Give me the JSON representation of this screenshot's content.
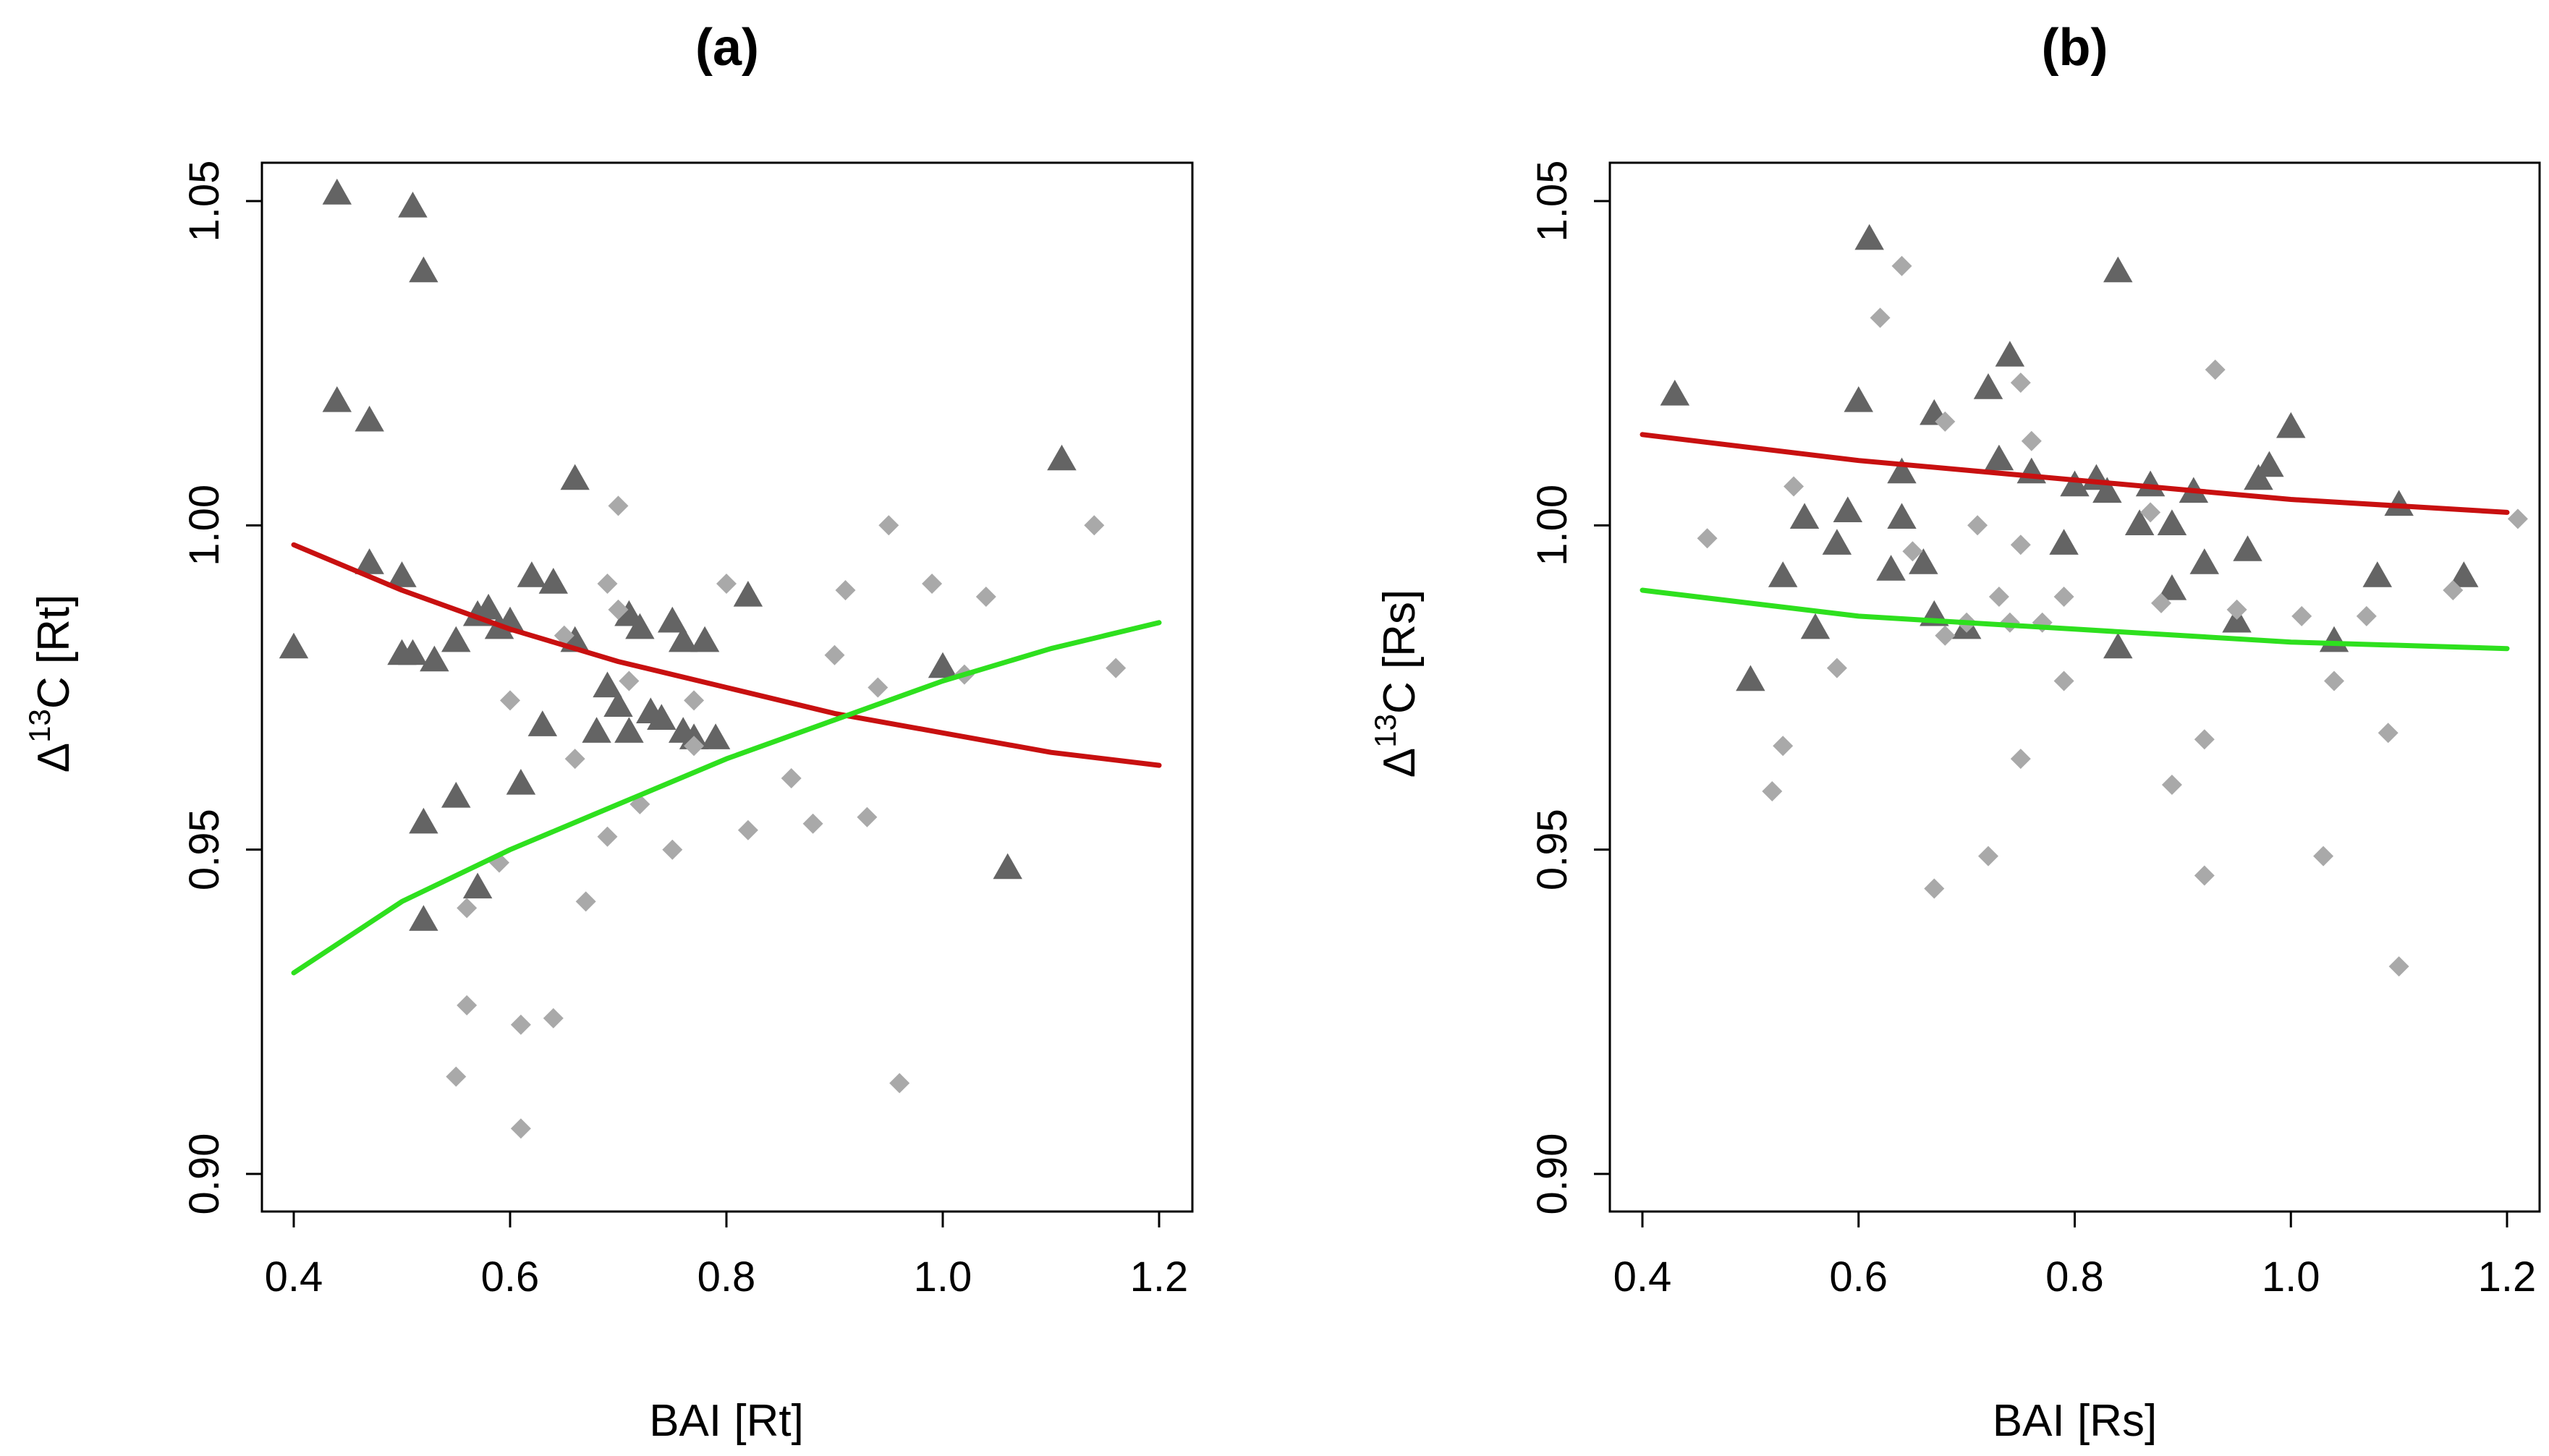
{
  "chart_data": [
    {
      "type": "scatter",
      "title": "(a)",
      "xlabel": "BAI [Rt]",
      "ylabel": {
        "prefix": "Δ",
        "sup": "13",
        "main": "C [Rt]"
      },
      "xlim": [
        0.4,
        1.2
      ],
      "ylim": [
        0.9,
        1.05
      ],
      "x_ticks": [
        "0.4",
        "0.6",
        "0.8",
        "1.0",
        "1.2"
      ],
      "x_tick_values": [
        0.4,
        0.6,
        0.8,
        1.0,
        1.2
      ],
      "y_ticks": [
        "0.90",
        "0.95",
        "1.00",
        "1.05"
      ],
      "y_tick_values": [
        0.9,
        0.95,
        1.0,
        1.05
      ],
      "colors": {
        "triangle": "#646464",
        "diamond": "#a9a9a9",
        "red_line": "#c81010",
        "green_line": "#2ee01e"
      },
      "series": [
        {
          "name": "triangles",
          "marker": "triangle",
          "points": [
            [
              0.4,
              0.981
            ],
            [
              0.44,
              1.051
            ],
            [
              0.44,
              1.019
            ],
            [
              0.47,
              1.016
            ],
            [
              0.47,
              0.994
            ],
            [
              0.5,
              0.992
            ],
            [
              0.5,
              0.98
            ],
            [
              0.51,
              0.98
            ],
            [
              0.51,
              1.049
            ],
            [
              0.52,
              1.039
            ],
            [
              0.52,
              0.954
            ],
            [
              0.52,
              0.939
            ],
            [
              0.53,
              0.979
            ],
            [
              0.55,
              0.958
            ],
            [
              0.55,
              0.982
            ],
            [
              0.57,
              0.944
            ],
            [
              0.57,
              0.986
            ],
            [
              0.58,
              0.987
            ],
            [
              0.59,
              0.984
            ],
            [
              0.6,
              0.985
            ],
            [
              0.61,
              0.96
            ],
            [
              0.62,
              0.992
            ],
            [
              0.63,
              0.969
            ],
            [
              0.64,
              0.991
            ],
            [
              0.66,
              1.007
            ],
            [
              0.66,
              0.982
            ],
            [
              0.68,
              0.968
            ],
            [
              0.69,
              0.975
            ],
            [
              0.7,
              0.972
            ],
            [
              0.71,
              0.968
            ],
            [
              0.71,
              0.986
            ],
            [
              0.72,
              0.984
            ],
            [
              0.73,
              0.971
            ],
            [
              0.74,
              0.97
            ],
            [
              0.75,
              0.985
            ],
            [
              0.76,
              0.968
            ],
            [
              0.76,
              0.982
            ],
            [
              0.77,
              0.967
            ],
            [
              0.78,
              0.982
            ],
            [
              0.79,
              0.967
            ],
            [
              0.82,
              0.989
            ],
            [
              1.0,
              0.978
            ],
            [
              1.06,
              0.947
            ],
            [
              1.11,
              1.01
            ]
          ]
        },
        {
          "name": "diamonds",
          "marker": "diamond",
          "points": [
            [
              0.55,
              0.915
            ],
            [
              0.56,
              0.926
            ],
            [
              0.56,
              0.941
            ],
            [
              0.59,
              0.948
            ],
            [
              0.6,
              0.973
            ],
            [
              0.61,
              0.907
            ],
            [
              0.61,
              0.923
            ],
            [
              0.64,
              0.924
            ],
            [
              0.65,
              0.983
            ],
            [
              0.66,
              0.964
            ],
            [
              0.67,
              0.942
            ],
            [
              0.69,
              0.991
            ],
            [
              0.69,
              0.952
            ],
            [
              0.7,
              0.987
            ],
            [
              0.7,
              1.003
            ],
            [
              0.71,
              0.976
            ],
            [
              0.72,
              0.957
            ],
            [
              0.75,
              0.95
            ],
            [
              0.77,
              0.973
            ],
            [
              0.77,
              0.966
            ],
            [
              0.8,
              0.991
            ],
            [
              0.82,
              0.953
            ],
            [
              0.86,
              0.961
            ],
            [
              0.88,
              0.954
            ],
            [
              0.9,
              0.98
            ],
            [
              0.91,
              0.99
            ],
            [
              0.93,
              0.955
            ],
            [
              0.94,
              0.975
            ],
            [
              0.95,
              1.0
            ],
            [
              0.96,
              0.914
            ],
            [
              0.99,
              0.991
            ],
            [
              1.02,
              0.977
            ],
            [
              1.04,
              0.989
            ],
            [
              1.14,
              1.0
            ],
            [
              1.16,
              0.978
            ]
          ]
        },
        {
          "name": "red_curve",
          "marker": "line",
          "color_key": "red_line",
          "points": [
            [
              0.4,
              0.997
            ],
            [
              0.5,
              0.99
            ],
            [
              0.6,
              0.984
            ],
            [
              0.7,
              0.979
            ],
            [
              0.8,
              0.975
            ],
            [
              0.9,
              0.971
            ],
            [
              1.0,
              0.968
            ],
            [
              1.1,
              0.965
            ],
            [
              1.2,
              0.963
            ]
          ]
        },
        {
          "name": "green_curve",
          "marker": "line",
          "color_key": "green_line",
          "points": [
            [
              0.4,
              0.931
            ],
            [
              0.5,
              0.942
            ],
            [
              0.6,
              0.95
            ],
            [
              0.7,
              0.957
            ],
            [
              0.8,
              0.964
            ],
            [
              0.9,
              0.97
            ],
            [
              1.0,
              0.976
            ],
            [
              1.1,
              0.981
            ],
            [
              1.2,
              0.985
            ]
          ]
        }
      ]
    },
    {
      "type": "scatter",
      "title": "(b)",
      "xlabel": "BAI [Rs]",
      "ylabel": {
        "prefix": "Δ",
        "sup": "13",
        "main": "C [Rs]"
      },
      "xlim": [
        0.4,
        1.2
      ],
      "ylim": [
        0.9,
        1.05
      ],
      "x_ticks": [
        "0.4",
        "0.6",
        "0.8",
        "1.0",
        "1.2"
      ],
      "x_tick_values": [
        0.4,
        0.6,
        0.8,
        1.0,
        1.2
      ],
      "y_ticks": [
        "0.90",
        "0.95",
        "1.00",
        "1.05"
      ],
      "y_tick_values": [
        0.9,
        0.95,
        1.0,
        1.05
      ],
      "colors": {
        "triangle": "#646464",
        "diamond": "#a9a9a9",
        "red_line": "#c81010",
        "green_line": "#2ee01e"
      },
      "series": [
        {
          "name": "triangles",
          "marker": "triangle",
          "points": [
            [
              0.43,
              1.02
            ],
            [
              0.5,
              0.976
            ],
            [
              0.53,
              0.992
            ],
            [
              0.55,
              1.001
            ],
            [
              0.56,
              0.984
            ],
            [
              0.58,
              0.997
            ],
            [
              0.59,
              1.002
            ],
            [
              0.6,
              1.019
            ],
            [
              0.61,
              1.044
            ],
            [
              0.63,
              0.993
            ],
            [
              0.64,
              1.001
            ],
            [
              0.64,
              1.008
            ],
            [
              0.66,
              0.994
            ],
            [
              0.67,
              1.017
            ],
            [
              0.67,
              0.986
            ],
            [
              0.7,
              0.984
            ],
            [
              0.72,
              1.021
            ],
            [
              0.73,
              1.01
            ],
            [
              0.74,
              1.026
            ],
            [
              0.76,
              1.008
            ],
            [
              0.79,
              0.997
            ],
            [
              0.8,
              1.006
            ],
            [
              0.82,
              1.007
            ],
            [
              0.83,
              1.005
            ],
            [
              0.84,
              1.039
            ],
            [
              0.84,
              0.981
            ],
            [
              0.86,
              1.0
            ],
            [
              0.87,
              1.006
            ],
            [
              0.89,
              1.0
            ],
            [
              0.89,
              0.99
            ],
            [
              0.91,
              1.005
            ],
            [
              0.92,
              0.994
            ],
            [
              0.95,
              0.985
            ],
            [
              0.96,
              0.996
            ],
            [
              0.97,
              1.007
            ],
            [
              0.98,
              1.009
            ],
            [
              1.0,
              1.015
            ],
            [
              1.04,
              0.982
            ],
            [
              1.08,
              0.992
            ],
            [
              1.1,
              1.003
            ],
            [
              1.16,
              0.992
            ]
          ]
        },
        {
          "name": "diamonds",
          "marker": "diamond",
          "points": [
            [
              0.46,
              0.998
            ],
            [
              0.52,
              0.959
            ],
            [
              0.53,
              0.966
            ],
            [
              0.54,
              1.006
            ],
            [
              0.58,
              0.978
            ],
            [
              0.62,
              1.032
            ],
            [
              0.64,
              1.04
            ],
            [
              0.65,
              0.996
            ],
            [
              0.67,
              0.944
            ],
            [
              0.68,
              0.983
            ],
            [
              0.68,
              1.016
            ],
            [
              0.7,
              0.985
            ],
            [
              0.71,
              1.0
            ],
            [
              0.72,
              0.949
            ],
            [
              0.73,
              0.989
            ],
            [
              0.74,
              0.985
            ],
            [
              0.75,
              1.022
            ],
            [
              0.75,
              0.997
            ],
            [
              0.75,
              0.964
            ],
            [
              0.76,
              1.013
            ],
            [
              0.77,
              0.985
            ],
            [
              0.79,
              0.989
            ],
            [
              0.79,
              0.976
            ],
            [
              0.87,
              1.002
            ],
            [
              0.88,
              0.988
            ],
            [
              0.89,
              0.96
            ],
            [
              0.92,
              0.967
            ],
            [
              0.92,
              0.946
            ],
            [
              0.93,
              1.024
            ],
            [
              0.95,
              0.987
            ],
            [
              1.01,
              0.986
            ],
            [
              1.03,
              0.949
            ],
            [
              1.04,
              0.976
            ],
            [
              1.07,
              0.986
            ],
            [
              1.09,
              0.968
            ],
            [
              1.1,
              0.932
            ],
            [
              1.15,
              0.99
            ],
            [
              1.21,
              1.001
            ]
          ]
        },
        {
          "name": "red_curve",
          "marker": "line",
          "color_key": "red_line",
          "points": [
            [
              0.4,
              1.014
            ],
            [
              0.6,
              1.01
            ],
            [
              0.8,
              1.007
            ],
            [
              1.0,
              1.004
            ],
            [
              1.2,
              1.002
            ]
          ]
        },
        {
          "name": "green_curve",
          "marker": "line",
          "color_key": "green_line",
          "points": [
            [
              0.4,
              0.99
            ],
            [
              0.6,
              0.986
            ],
            [
              0.8,
              0.984
            ],
            [
              1.0,
              0.982
            ],
            [
              1.2,
              0.981
            ]
          ]
        }
      ]
    }
  ]
}
